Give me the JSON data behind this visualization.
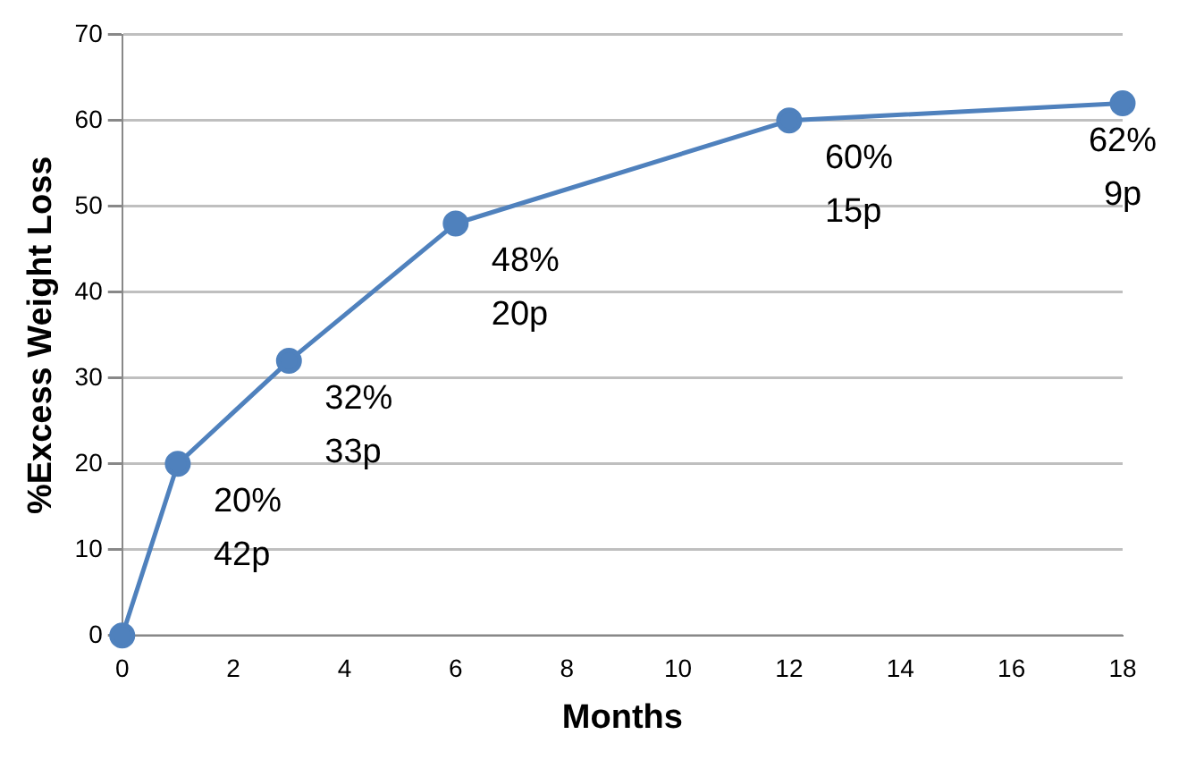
{
  "chart_data": {
    "type": "line",
    "xlabel": "Months",
    "ylabel": "%Excess Weight Loss",
    "x": [
      0,
      1,
      3,
      6,
      12,
      18
    ],
    "series": [
      {
        "color": "#4f81bd",
        "values": [
          0,
          20,
          32,
          48,
          60,
          62
        ]
      }
    ],
    "xlim": [
      0,
      18
    ],
    "xticks": [
      0,
      2,
      4,
      6,
      8,
      10,
      12,
      14,
      16,
      18
    ],
    "ylim": [
      0,
      70
    ],
    "yticks": [
      0,
      10,
      20,
      30,
      40,
      50,
      60,
      70
    ],
    "grid": "y",
    "legend": false,
    "marker": "circle",
    "line_style": "solid",
    "annotations": [
      {
        "text": "20%\n42p",
        "x": 1,
        "y": 20
      },
      {
        "text": "32%\n33p",
        "x": 3,
        "y": 32
      },
      {
        "text": "48%\n20p",
        "x": 6,
        "y": 48
      },
      {
        "text": "60%\n15p",
        "x": 12,
        "y": 60
      },
      {
        "text": "62%\n9p",
        "x": 18,
        "y": 62
      }
    ]
  }
}
